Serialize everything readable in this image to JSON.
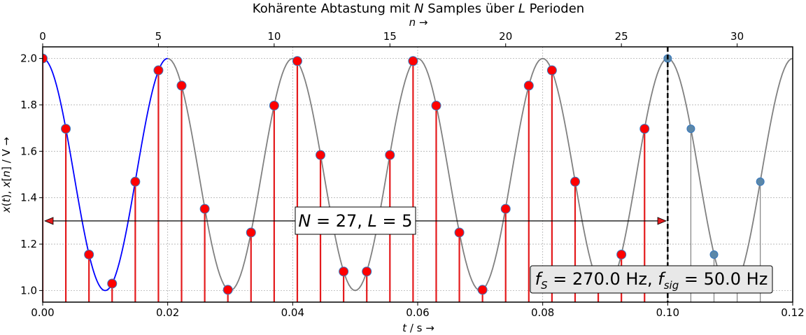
{
  "chart_data": {
    "type": "line",
    "title": "Kohärente Abtastung mit N Samples über L Perioden",
    "title_parts": {
      "t1": "Kohärente Abtastung mit ",
      "t2": "N",
      "t3": " Samples über ",
      "t4": "L",
      "t5": " Perioden"
    },
    "xlabel_bottom": "t / s →",
    "xlabel_bottom_parts": {
      "t": "t",
      "rest": " / s  →"
    },
    "xlabel_top": "n →",
    "xlabel_top_parts": {
      "n": "n",
      "rest": " →"
    },
    "ylabel": "x(t), x[n] / V →",
    "ylabel_parts": {
      "a": "x",
      "b": "(",
      "c": "t",
      "d": "), ",
      "e": "x",
      "f": "[",
      "g": "n",
      "h": "] / V  →"
    },
    "xlim": [
      0,
      0.12
    ],
    "ylim": [
      0.95,
      2.05
    ],
    "xticks": [
      "0.00",
      "0.02",
      "0.04",
      "0.06",
      "0.08",
      "0.10",
      "0.12"
    ],
    "xtick_values": [
      0,
      0.02,
      0.04,
      0.06,
      0.08,
      0.1,
      0.12
    ],
    "yticks": [
      "1.0",
      "1.2",
      "1.4",
      "1.6",
      "1.8",
      "2.0"
    ],
    "ytick_values": [
      1.0,
      1.2,
      1.4,
      1.6,
      1.8,
      2.0
    ],
    "top_xticks": [
      "0",
      "5",
      "10",
      "15",
      "20",
      "25",
      "30"
    ],
    "top_xtick_values": [
      0,
      5,
      10,
      15,
      20,
      25,
      30
    ],
    "grid": true,
    "signal": {
      "offset": 1.5,
      "amplitude": 0.5,
      "f_sig": 50.0,
      "f_s": 270.0
    },
    "samples_n": [
      0,
      1,
      2,
      3,
      4,
      5,
      6,
      7,
      8,
      9,
      10,
      11,
      12,
      13,
      14,
      15,
      16,
      17,
      18,
      19,
      20,
      21,
      22,
      23,
      24,
      25,
      26,
      27,
      28,
      29,
      30,
      31
    ],
    "samples_value": [
      2.0,
      1.697,
      1.155,
      1.03,
      1.469,
      1.949,
      1.883,
      1.352,
      1.003,
      1.25,
      1.797,
      1.989,
      1.584,
      1.082,
      1.082,
      1.584,
      1.989,
      1.797,
      1.25,
      1.003,
      1.352,
      1.883,
      1.949,
      1.469,
      1.03,
      1.155,
      1.697,
      2.0,
      1.697,
      1.155,
      1.03,
      1.469
    ],
    "N": 27,
    "L": 5,
    "period_end_t": 0.1,
    "annotation_NL": {
      "N": "N",
      "eq1": " = 27, ",
      "L": "L",
      "eq2": " = 5"
    },
    "annotation_f": {
      "fS": "f",
      "sS": "S",
      "eq1": " = 270.0 Hz, ",
      "fsig": "f",
      "ssig": "sig",
      "eq2": " = 50.0 Hz"
    },
    "colors": {
      "first_period": "#0000ff",
      "continuation": "#808080",
      "stem_in_window": "#e41a1c",
      "marker_fill": "#ff0000",
      "marker_edge": "#3778bf",
      "after_window": "#808080",
      "after_marker_fill": "#5b87a8",
      "grid": "#b0b0b0"
    }
  }
}
